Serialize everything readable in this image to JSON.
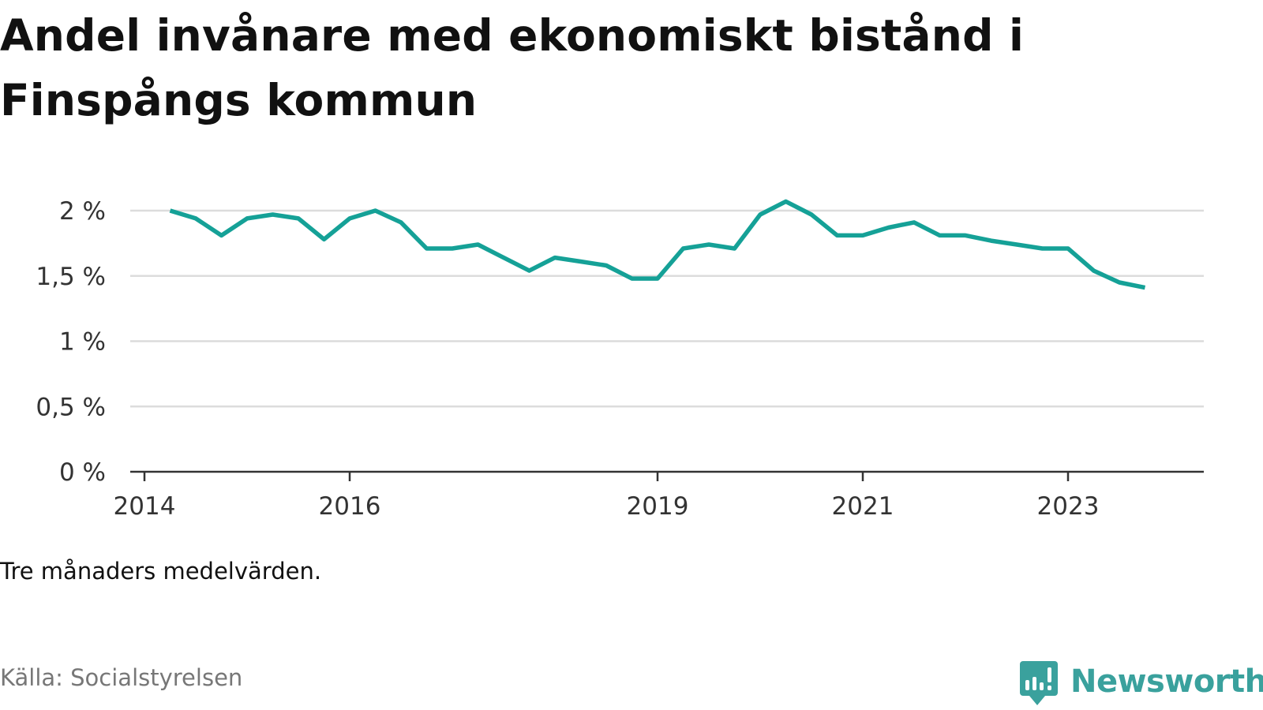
{
  "title": "Andel invånare med ekonomiskt bistånd i Finspångs kommun",
  "note": "Tre månaders medelvärden.",
  "source": "Källa: Socialstyrelsen",
  "brand": {
    "name": "Newsworthy",
    "icon": "newsworthy-logo-icon",
    "color": "#3aa19d"
  },
  "chart_data": {
    "type": "line",
    "title": "Andel invånare med ekonomiskt bistånd i Finspångs kommun",
    "xlabel": "",
    "ylabel": "",
    "x_ticks": [
      "2014",
      "2016",
      "2019",
      "2021",
      "2023"
    ],
    "y_ticks": [
      "0 %",
      "0,5 %",
      "1 %",
      "1,5 %",
      "2 %"
    ],
    "ylim": [
      0,
      2.2
    ],
    "xlim": [
      "2014-01",
      "2024-06"
    ],
    "grid": true,
    "line_color": "#15a197",
    "series": [
      {
        "x": [
          "2014-04",
          "2014-07",
          "2014-10",
          "2015-01",
          "2015-04",
          "2015-07",
          "2015-10",
          "2016-01",
          "2016-04",
          "2016-07",
          "2016-10",
          "2017-01",
          "2017-04",
          "2017-07",
          "2017-10",
          "2018-01",
          "2018-04",
          "2018-07",
          "2018-10",
          "2019-01",
          "2019-04",
          "2019-07",
          "2019-10",
          "2020-01",
          "2020-04",
          "2020-07",
          "2020-10",
          "2021-01",
          "2021-04",
          "2021-07",
          "2021-10",
          "2022-01",
          "2022-04",
          "2022-07",
          "2022-10",
          "2023-01",
          "2023-04",
          "2023-07",
          "2023-10"
        ],
        "values": [
          2.0,
          1.94,
          1.81,
          1.94,
          1.97,
          1.94,
          1.78,
          1.94,
          2.0,
          1.91,
          1.71,
          1.71,
          1.74,
          1.64,
          1.54,
          1.64,
          1.61,
          1.58,
          1.48,
          1.48,
          1.71,
          1.74,
          1.71,
          1.97,
          2.07,
          1.97,
          1.81,
          1.81,
          1.87,
          1.91,
          1.81,
          1.81,
          1.77,
          1.74,
          1.71,
          1.71,
          1.54,
          1.45,
          1.41
        ]
      }
    ]
  }
}
